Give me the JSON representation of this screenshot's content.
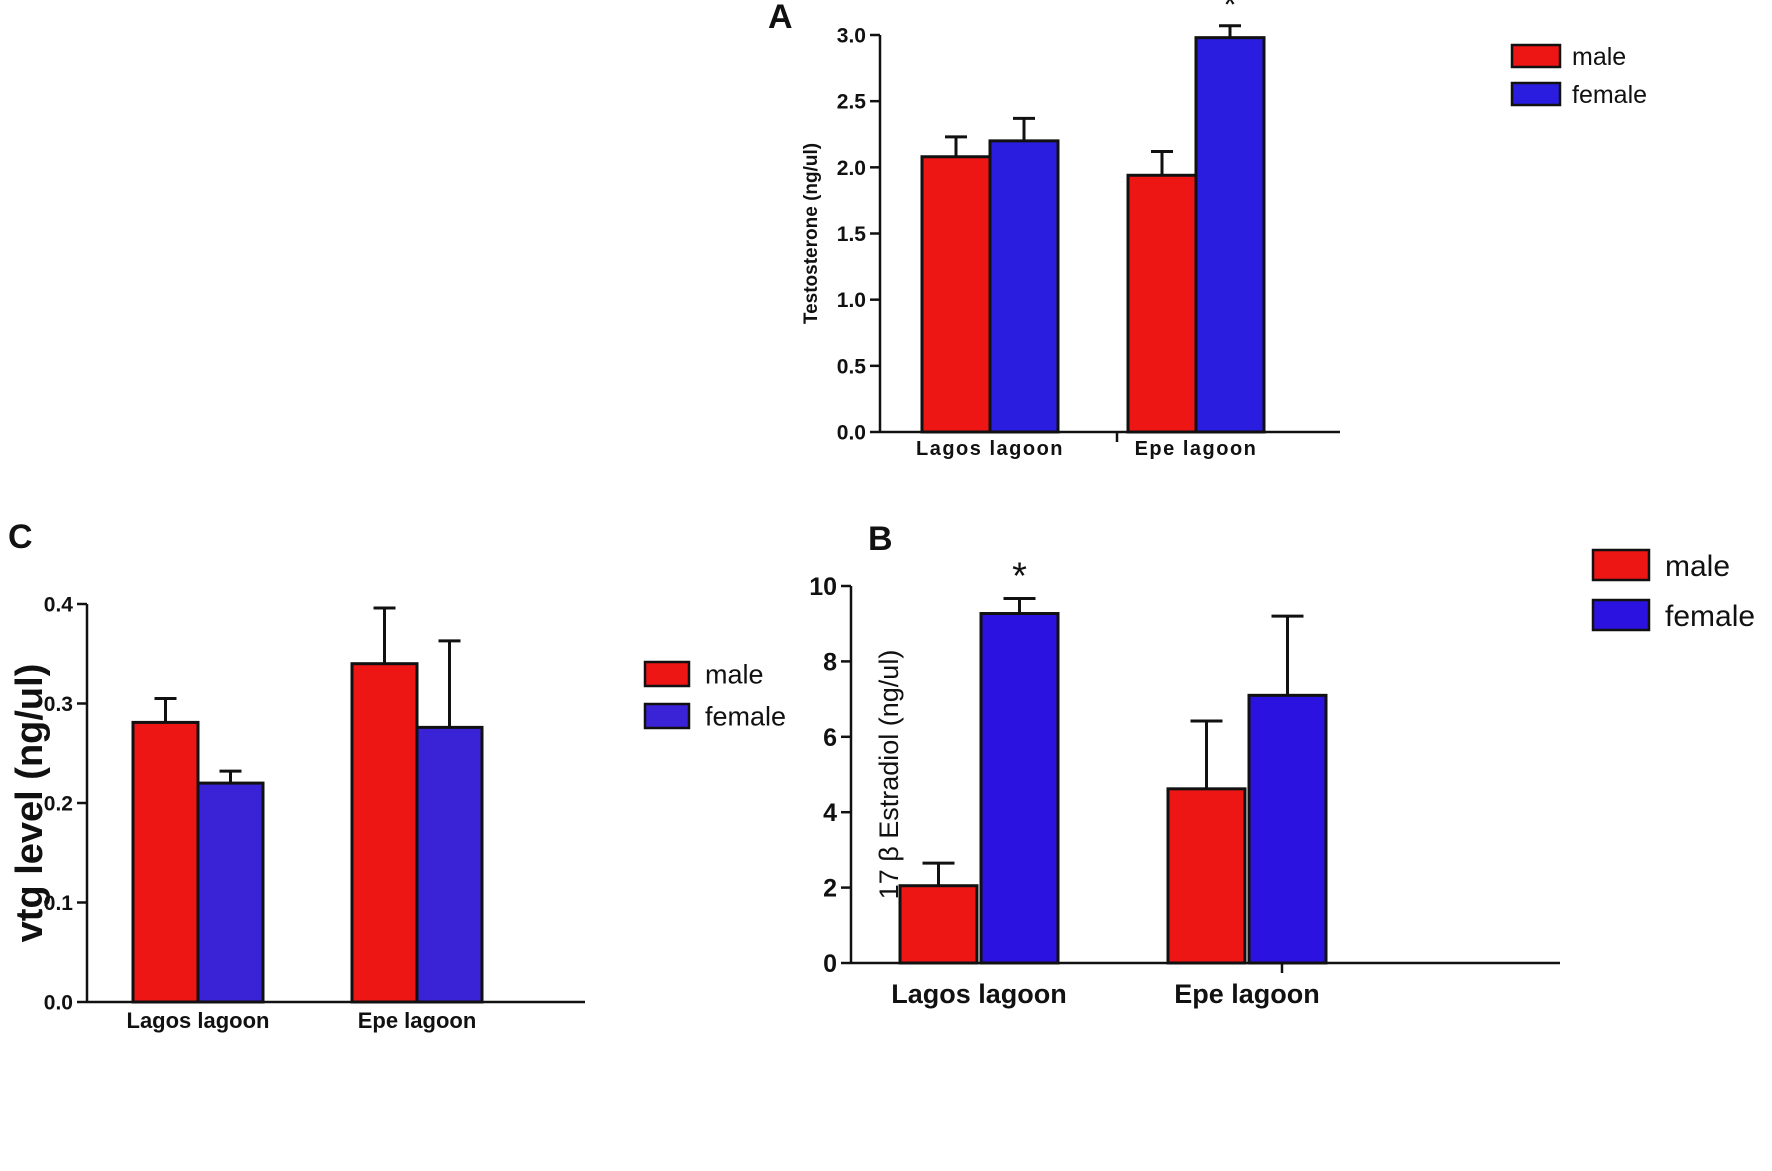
{
  "chart_data": [
    {
      "id": "A",
      "panel_label": "A",
      "type": "bar",
      "ylabel": "Testosterone (ng/ul)",
      "categories": [
        "Lagos lagoon",
        "Epe lagoon"
      ],
      "ylim": [
        0,
        3.0
      ],
      "yticks": [
        "0.0",
        "0.5",
        "1.0",
        "1.5",
        "2.0",
        "2.5",
        "3.0"
      ],
      "ytick_values": [
        0,
        0.5,
        1.0,
        1.5,
        2.0,
        2.5,
        3.0
      ],
      "series": [
        {
          "name": "male",
          "color": "#ee1515",
          "values": [
            2.08,
            1.94
          ],
          "errors": [
            0.15,
            0.18
          ]
        },
        {
          "name": "female",
          "color": "#2b1de0",
          "values": [
            2.2,
            2.98
          ],
          "errors": [
            0.17,
            0.09
          ]
        }
      ],
      "annotations": [
        {
          "category": 1,
          "series": 1,
          "text": "*"
        }
      ],
      "legend_position": "top-right"
    },
    {
      "id": "C",
      "panel_label": "C",
      "type": "bar",
      "ylabel": "vtg level (ng/ul)",
      "categories": [
        "Lagos lagoon",
        "Epe lagoon"
      ],
      "ylim": [
        0,
        0.4
      ],
      "yticks": [
        "0.0",
        "0.1",
        "0.2",
        "0.3",
        "0.4"
      ],
      "ytick_values": [
        0,
        0.1,
        0.2,
        0.3,
        0.4
      ],
      "series": [
        {
          "name": "male",
          "color": "#ee1515",
          "values": [
            0.281,
            0.34
          ],
          "errors": [
            0.024,
            0.056
          ]
        },
        {
          "name": "female",
          "color": "#3a22d6",
          "values": [
            0.22,
            0.276
          ],
          "errors": [
            0.012,
            0.087
          ]
        }
      ],
      "annotations": [],
      "legend_position": "top-right"
    },
    {
      "id": "B",
      "panel_label": "B",
      "type": "bar",
      "ylabel": "17 β Estradiol (ng/ul)",
      "categories": [
        "Lagos lagoon",
        "Epe lagoon"
      ],
      "ylim": [
        0,
        10
      ],
      "yticks": [
        "0",
        "2",
        "4",
        "6",
        "8",
        "10"
      ],
      "ytick_values": [
        0,
        2,
        4,
        6,
        8,
        10
      ],
      "series": [
        {
          "name": "male",
          "color": "#ee1515",
          "values": [
            2.05,
            4.62
          ],
          "errors": [
            0.6,
            1.8
          ]
        },
        {
          "name": "female",
          "color": "#2b12e0",
          "values": [
            9.27,
            7.1
          ],
          "errors": [
            0.4,
            2.1
          ]
        }
      ],
      "annotations": [
        {
          "category": 0,
          "series": 1,
          "text": "*"
        }
      ],
      "legend_position": "top-right"
    }
  ]
}
